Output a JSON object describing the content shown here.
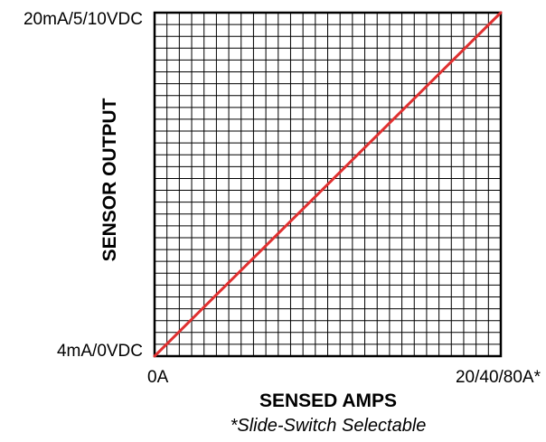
{
  "chart_data": {
    "type": "line",
    "xlabel": "SENSED AMPS",
    "ylabel": "SENSOR OUTPUT",
    "note": "*Slide-Switch Selectable",
    "x_tick_labels": [
      "0A",
      "20/40/80A*"
    ],
    "y_tick_labels": [
      "4mA/0VDC",
      "20mA/5/10VDC"
    ],
    "xlim": [
      0,
      1
    ],
    "ylim": [
      0,
      1
    ],
    "grid": true,
    "series": [
      {
        "x": [
          0,
          1
        ],
        "y": [
          0,
          1
        ],
        "color": "#e03030"
      }
    ]
  }
}
